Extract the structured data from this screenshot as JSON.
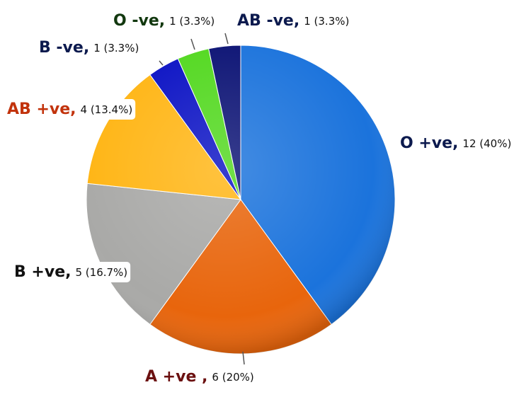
{
  "chart_data": {
    "type": "pie",
    "categories": [
      "O +ve,",
      "A +ve ,",
      "B +ve,",
      "AB +ve,",
      "B -ve,",
      "O -ve,",
      "AB  -ve,"
    ],
    "values": [
      12,
      6,
      5,
      4,
      1,
      1,
      1
    ],
    "value_labels": [
      "12 (40%)",
      "6 (20%)",
      "5 (16.7%)",
      "4 (13.4%)",
      "1 (3.3%)",
      "1 (3.3%)",
      "1 (3.3%)"
    ],
    "colors": [
      "#1b73dc",
      "#e8650c",
      "#a9a9a7",
      "#ffb514",
      "#0b12c4",
      "#52d81f",
      "#0b1274"
    ]
  }
}
